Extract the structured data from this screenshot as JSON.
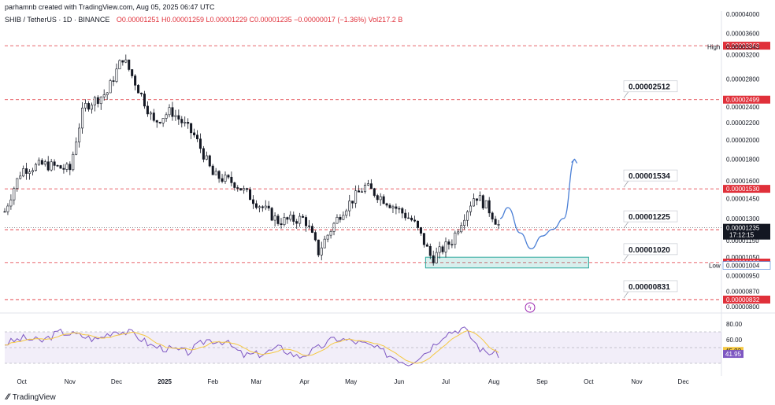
{
  "header": {
    "line1": "parhamnb created with TradingView.com, Aug 05, 2025 06:47 UTC",
    "symbol": "SHIB / TetherUS · 1D · BINANCE",
    "ohlc": "O0.00001251  H0.00001259  L0.00001229  C0.00001235  −0.00000017 (−1.36%)  Vol217.2 B"
  },
  "footer": {
    "brand": "TradingView"
  },
  "colors": {
    "up": "#131722",
    "down": "#131722",
    "level": "#e0303a",
    "projection": "#4a7fd6",
    "zone": "#26a69a",
    "rsi": "#7e57c2",
    "rsi_ma": "#f5c842"
  },
  "chart_data": {
    "type": "line",
    "title": "",
    "x_axis_labels": [
      "Oct",
      "Nov",
      "Dec",
      "2025",
      "Feb",
      "Mar",
      "Apr",
      "May",
      "Jun",
      "Jul",
      "Aug",
      "Sep",
      "Oct",
      "Nov",
      "Dec"
    ],
    "price_axis": {
      "ylim": [
        8e-06,
        4e-05
      ],
      "ticks": [
        "0.00004000",
        "0.00003600",
        "0.00003200",
        "0.00002800",
        "0.00002400",
        "0.00002200",
        "0.00002000",
        "0.00001800",
        "0.00001600",
        "0.00001450",
        "0.00001300",
        "0.00001150",
        "0.00001050",
        "0.00000950",
        "0.00000870",
        "0.00000800"
      ]
    },
    "close_series": [
      {
        "d": "Sep 20",
        "c": 1.35e-05
      },
      {
        "d": "Oct 01",
        "c": 1.7e-05
      },
      {
        "d": "Oct 15",
        "c": 1.75e-05
      },
      {
        "d": "Nov 01",
        "c": 1.7e-05
      },
      {
        "d": "Nov 10",
        "c": 2.4e-05
      },
      {
        "d": "Nov 25",
        "c": 2.6e-05
      },
      {
        "d": "Dec 05",
        "c": 3.15e-05
      },
      {
        "d": "Dec 15",
        "c": 2.65e-05
      },
      {
        "d": "Dec 25",
        "c": 2.2e-05
      },
      {
        "d": "Jan 05",
        "c": 2.35e-05
      },
      {
        "d": "Jan 20",
        "c": 2.05e-05
      },
      {
        "d": "Feb 01",
        "c": 1.65e-05
      },
      {
        "d": "Feb 15",
        "c": 1.58e-05
      },
      {
        "d": "Mar 01",
        "c": 1.42e-05
      },
      {
        "d": "Mar 15",
        "c": 1.28e-05
      },
      {
        "d": "Apr 01",
        "c": 1.3e-05
      },
      {
        "d": "Apr 10",
        "c": 1.08e-05
      },
      {
        "d": "Apr 25",
        "c": 1.35e-05
      },
      {
        "d": "May 10",
        "c": 1.55e-05
      },
      {
        "d": "May 25",
        "c": 1.42e-05
      },
      {
        "d": "Jun 10",
        "c": 1.28e-05
      },
      {
        "d": "Jun 22",
        "c": 1.04e-05
      },
      {
        "d": "Jul 05",
        "c": 1.15e-05
      },
      {
        "d": "Jul 20",
        "c": 1.48e-05
      },
      {
        "d": "Jul 28",
        "c": 1.38e-05
      },
      {
        "d": "Aug 05",
        "c": 1.235e-05
      }
    ],
    "projection": [
      {
        "d": "Aug 05",
        "c": 1.3e-05
      },
      {
        "d": "Aug 10",
        "c": 1.38e-05
      },
      {
        "d": "Aug 18",
        "c": 1.2e-05
      },
      {
        "d": "Aug 25",
        "c": 1.1e-05
      },
      {
        "d": "Sep 01",
        "c": 1.18e-05
      },
      {
        "d": "Sep 08",
        "c": 1.225e-05
      },
      {
        "d": "Sep 15",
        "c": 1.3e-05
      },
      {
        "d": "Sep 22",
        "c": 1.8e-05
      }
    ],
    "levels": [
      {
        "price": "0.00003363",
        "tag": "0.00003363",
        "callout": ""
      },
      {
        "price": "0.00002499",
        "tag": "0.00002499",
        "callout": "0.00002512"
      },
      {
        "price": "0.00001530",
        "tag": "0.00001530",
        "callout": "0.00001534"
      },
      {
        "price": "0.00001222",
        "tag": "0.00001222",
        "callout": "0.00001225"
      },
      {
        "price": "0.00001020",
        "tag": "0.00001020",
        "callout": "0.00001020"
      },
      {
        "price": "0.00000832",
        "tag": "0.00000832",
        "callout": "0.00000831"
      }
    ],
    "high_label": {
      "text": "High",
      "value": "0.00003343"
    },
    "low_label": {
      "text": "Low",
      "value": "0.00001004"
    },
    "last_price": {
      "value": "0.00001235",
      "countdown": "17:12:15"
    },
    "demand_zone": {
      "top": 1.05e-05,
      "bottom": 9.9e-06,
      "from": "Jun 18",
      "to": "Oct 01"
    },
    "rsi": {
      "ylim": [
        20,
        90
      ],
      "ticks": [
        "80.00",
        "60.00"
      ],
      "value": "41.95",
      "ma_value": "45.82",
      "values": [
        55,
        62,
        58,
        70,
        66,
        60,
        72,
        68,
        52,
        48,
        44,
        60,
        58,
        40,
        42,
        50,
        38,
        48,
        62,
        58,
        52,
        40,
        30,
        45,
        68,
        75,
        46,
        41
      ]
    }
  }
}
